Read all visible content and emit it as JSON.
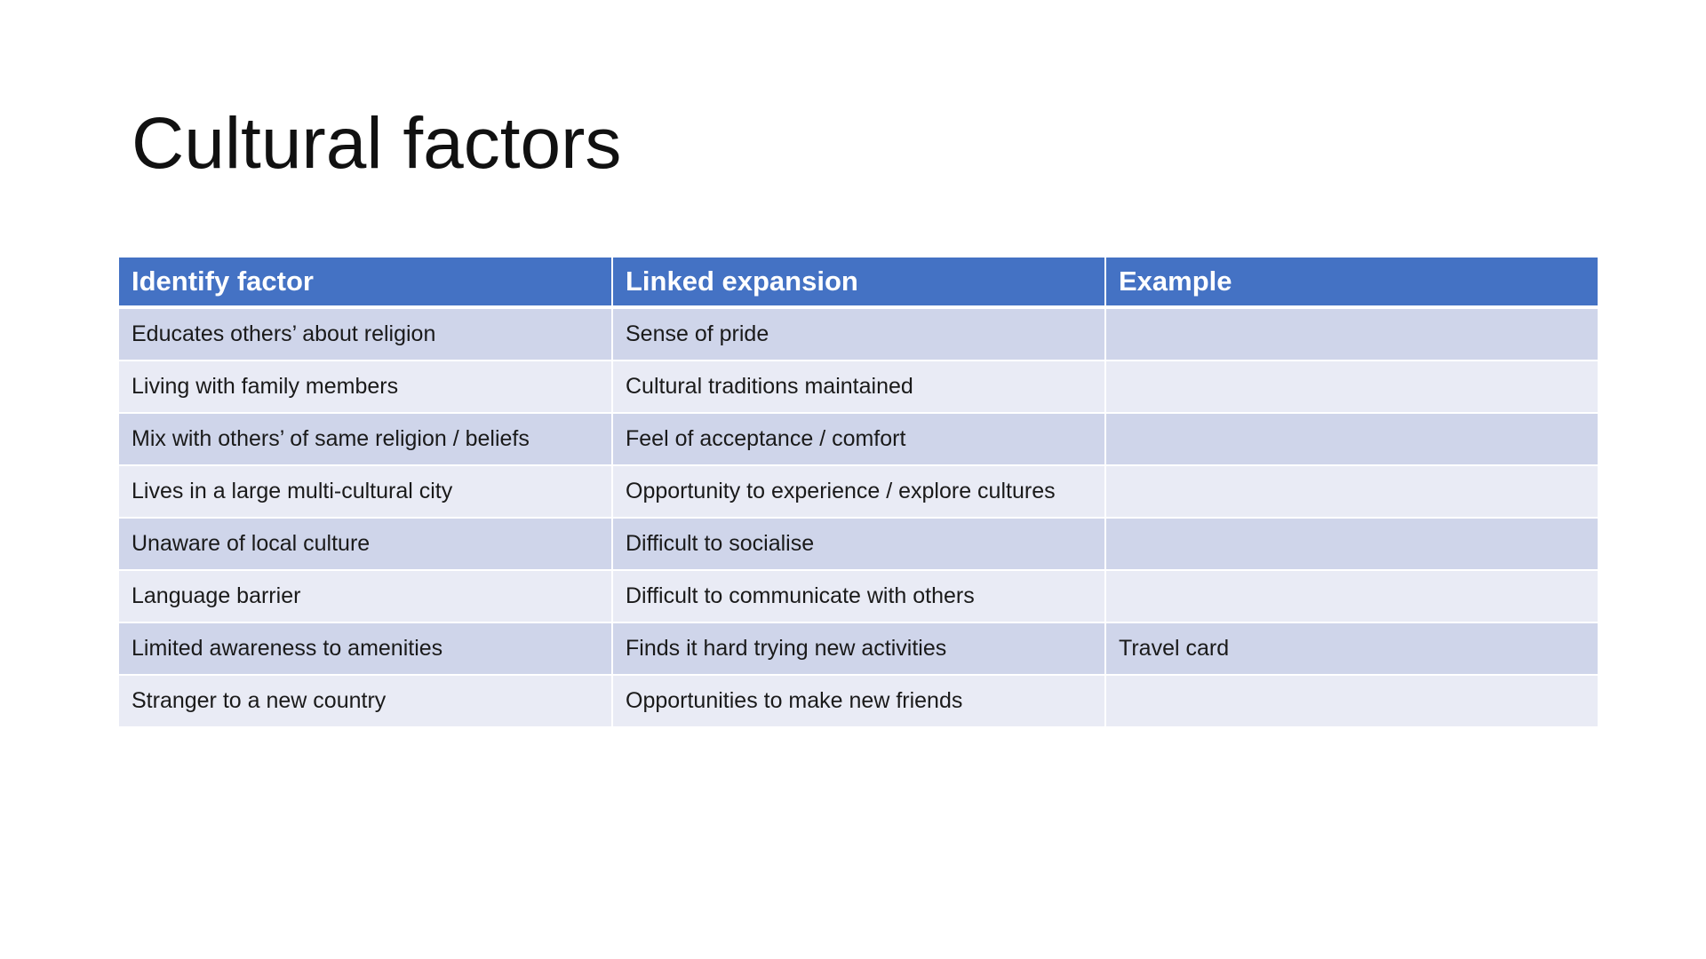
{
  "slide": {
    "title": "Cultural factors"
  },
  "table": {
    "headers": [
      "Identify factor",
      "Linked expansion",
      "Example"
    ],
    "rows": [
      [
        "Educates others’ about religion",
        "Sense of pride",
        ""
      ],
      [
        "Living with family members",
        "Cultural traditions maintained",
        ""
      ],
      [
        "Mix with others’ of same religion / beliefs",
        "Feel of acceptance / comfort",
        ""
      ],
      [
        "Lives in a large multi-cultural city",
        "Opportunity to experience / explore cultures",
        ""
      ],
      [
        "Unaware of local culture",
        "Difficult to socialise",
        ""
      ],
      [
        "Language barrier",
        "Difficult to communicate with others",
        ""
      ],
      [
        "Limited awareness to amenities",
        "Finds it hard trying new activities",
        "Travel card"
      ],
      [
        "Stranger to a new country",
        "Opportunities to make new friends",
        ""
      ]
    ]
  },
  "colors": {
    "header_bg": "#4472c4",
    "row_odd_bg": "#cfd5ea",
    "row_even_bg": "#e9ebf5"
  }
}
